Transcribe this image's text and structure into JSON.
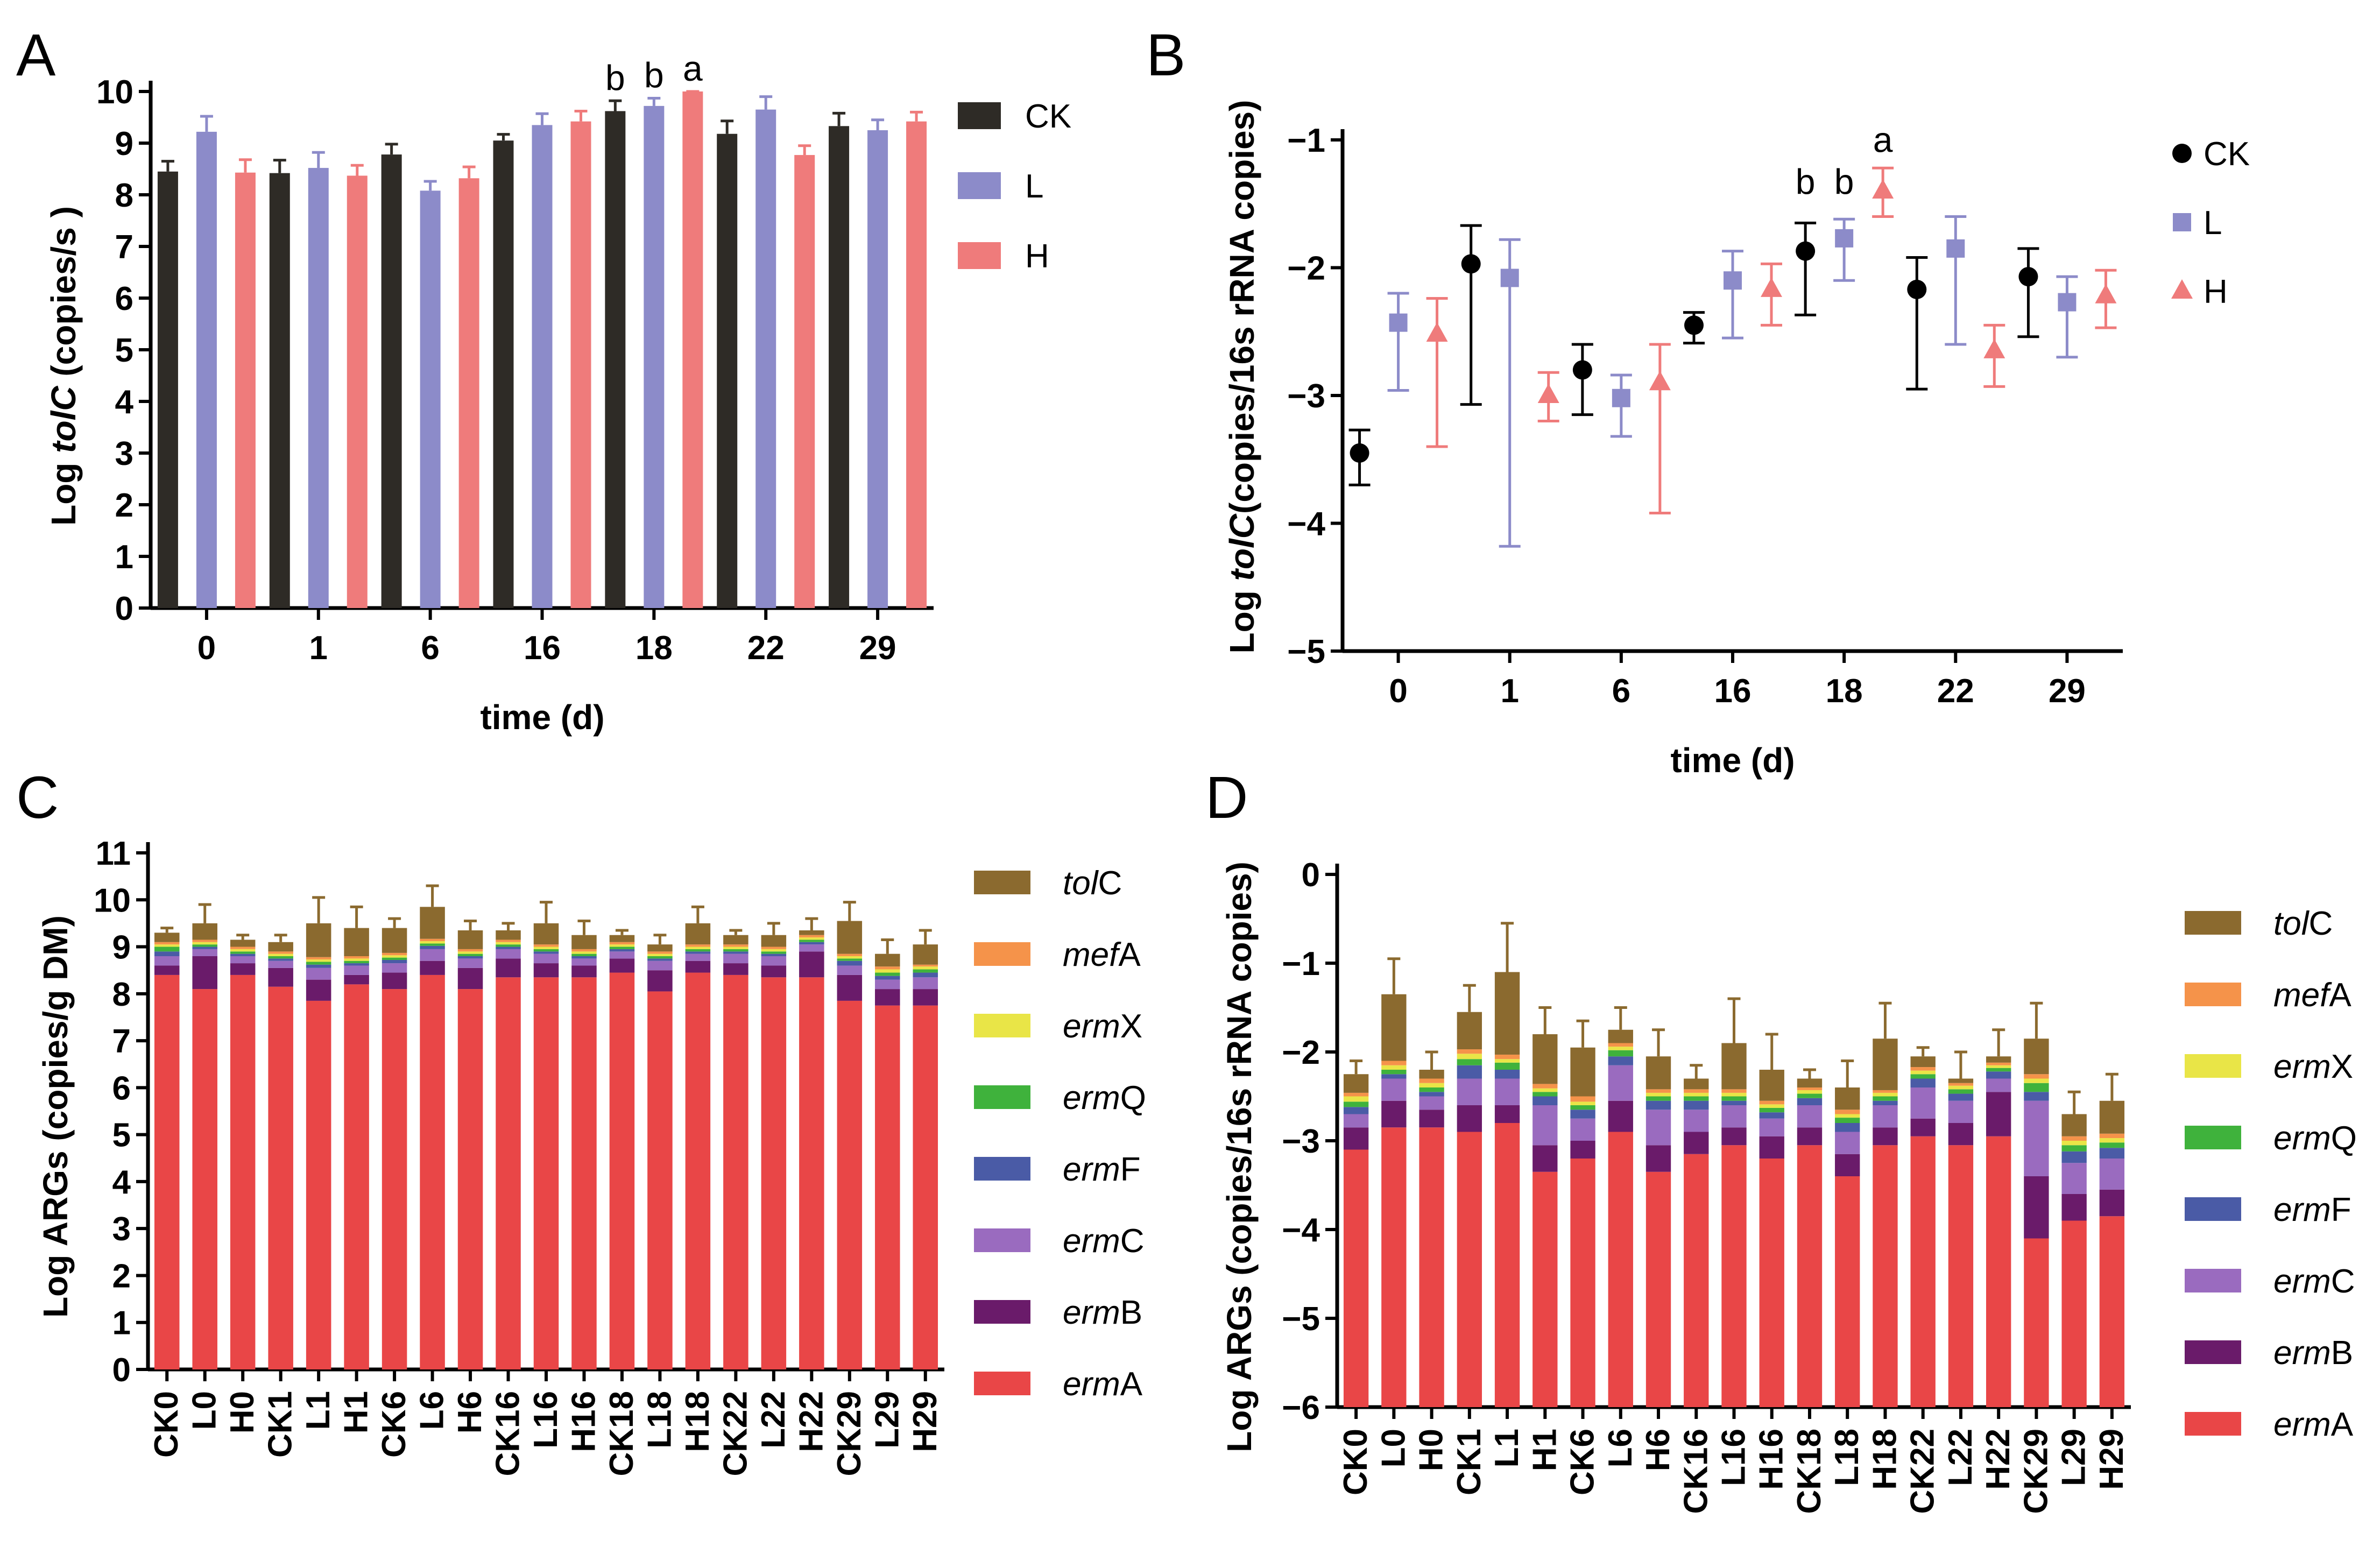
{
  "chart_data": [
    {
      "panel": "A",
      "type": "bar",
      "ylabel": {
        "prefix": "Log ",
        "gene": "tolC",
        "suffix": " (copies/s )"
      },
      "xlabel": "time (d)",
      "categories": [
        "0",
        "1",
        "6",
        "16",
        "18",
        "22",
        "29"
      ],
      "ylim": [
        0,
        10
      ],
      "yticks": [
        0,
        1,
        2,
        3,
        4,
        5,
        6,
        7,
        8,
        9,
        10
      ],
      "series": [
        {
          "name": "CK",
          "color": "#2e2b26",
          "values": [
            8.45,
            8.42,
            8.78,
            9.05,
            9.62,
            9.18,
            9.33
          ],
          "err": [
            0.2,
            0.25,
            0.2,
            0.12,
            0.2,
            0.25,
            0.25
          ]
        },
        {
          "name": "L",
          "color": "#8c8bc9",
          "values": [
            9.22,
            8.52,
            8.08,
            9.35,
            9.72,
            9.65,
            9.25
          ],
          "err": [
            0.3,
            0.3,
            0.18,
            0.22,
            0.15,
            0.25,
            0.2
          ]
        },
        {
          "name": "H",
          "color": "#ef7b7b",
          "values": [
            8.43,
            8.37,
            8.32,
            9.42,
            10.0,
            8.77,
            9.42
          ],
          "err": [
            0.25,
            0.2,
            0.22,
            0.2,
            0.0,
            0.18,
            0.18
          ]
        }
      ],
      "annotations": [
        {
          "category": "18",
          "series": "CK",
          "text": "b"
        },
        {
          "category": "18",
          "series": "L",
          "text": "b"
        },
        {
          "category": "18",
          "series": "H",
          "text": "a"
        }
      ]
    },
    {
      "panel": "B",
      "type": "scatter",
      "ylabel": {
        "prefix": "Log ",
        "gene": "tolC",
        "suffix": "(copies/16s rRNA copies)"
      },
      "xlabel": "time (d)",
      "categories": [
        "0",
        "1",
        "6",
        "16",
        "18",
        "22",
        "29"
      ],
      "ylim": [
        -5,
        -1
      ],
      "yticks": [
        -5,
        -4,
        -3,
        -2,
        -1
      ],
      "series": [
        {
          "name": "CK",
          "marker": "circle",
          "color": "#000000",
          "values": [
            -3.45,
            -1.97,
            -2.8,
            -2.45,
            -1.87,
            -2.17,
            -2.07
          ],
          "err_low": [
            0.25,
            1.1,
            0.35,
            0.14,
            0.5,
            0.78,
            0.47
          ],
          "err_high": [
            0.18,
            0.3,
            0.2,
            0.1,
            0.22,
            0.25,
            0.22
          ]
        },
        {
          "name": "L",
          "marker": "square",
          "color": "#8c8bc9",
          "values": [
            -2.43,
            -2.08,
            -3.02,
            -2.1,
            -1.77,
            -1.85,
            -2.27
          ],
          "err_low": [
            0.53,
            2.1,
            0.3,
            0.45,
            0.33,
            0.75,
            0.43
          ],
          "err_high": [
            0.23,
            0.3,
            0.18,
            0.23,
            0.15,
            0.25,
            0.2
          ]
        },
        {
          "name": "H",
          "marker": "triangle",
          "color": "#ef7b7b",
          "values": [
            -2.52,
            -3.0,
            -2.9,
            -2.17,
            -1.4,
            -2.65,
            -2.22
          ],
          "err_low": [
            0.88,
            0.2,
            1.02,
            0.28,
            0.2,
            0.28,
            0.25
          ],
          "err_high": [
            0.28,
            0.18,
            0.3,
            0.2,
            0.18,
            0.2,
            0.2
          ]
        }
      ],
      "annotations": [
        {
          "category": "18",
          "series": "CK",
          "text": "b"
        },
        {
          "category": "18",
          "series": "L",
          "text": "b"
        },
        {
          "category": "18",
          "series": "H",
          "text": "a"
        }
      ]
    },
    {
      "panel": "C",
      "type": "stacked-bar",
      "ylabel": "Log ARGs (copies/g DM)",
      "categories": [
        "CK0",
        "L0",
        "H0",
        "CK1",
        "L1",
        "H1",
        "CK6",
        "L6",
        "H6",
        "CK16",
        "L16",
        "H16",
        "CK18",
        "L18",
        "H18",
        "CK22",
        "L22",
        "H22",
        "CK29",
        "L29",
        "H29"
      ],
      "ylim": [
        0,
        11
      ],
      "yticks": [
        0,
        1,
        2,
        3,
        4,
        5,
        6,
        7,
        8,
        9,
        10,
        11
      ],
      "stack_boundaries": [
        [
          8.4,
          8.6,
          8.8,
          8.9,
          9.0,
          9.05,
          9.1,
          9.3
        ],
        [
          8.1,
          8.8,
          8.95,
          9.0,
          9.05,
          9.1,
          9.15,
          9.5
        ],
        [
          8.4,
          8.65,
          8.8,
          8.85,
          8.9,
          8.95,
          9.0,
          9.15
        ],
        [
          8.15,
          8.55,
          8.7,
          8.75,
          8.8,
          8.85,
          8.9,
          9.1
        ],
        [
          7.85,
          8.3,
          8.55,
          8.62,
          8.68,
          8.73,
          8.78,
          9.5
        ],
        [
          8.2,
          8.4,
          8.6,
          8.65,
          8.7,
          8.75,
          8.8,
          9.4
        ],
        [
          8.1,
          8.45,
          8.65,
          8.72,
          8.77,
          8.82,
          8.87,
          9.4
        ],
        [
          8.4,
          8.7,
          8.95,
          9.02,
          9.07,
          9.12,
          9.17,
          9.85
        ],
        [
          8.1,
          8.55,
          8.75,
          8.8,
          8.85,
          8.9,
          8.95,
          9.35
        ],
        [
          8.35,
          8.75,
          8.95,
          9.0,
          9.05,
          9.1,
          9.15,
          9.35
        ],
        [
          8.35,
          8.65,
          8.85,
          8.9,
          8.95,
          9.0,
          9.05,
          9.5
        ],
        [
          8.35,
          8.6,
          8.75,
          8.8,
          8.85,
          8.9,
          8.95,
          9.25
        ],
        [
          8.45,
          8.75,
          8.9,
          8.95,
          9.0,
          9.05,
          9.1,
          9.25
        ],
        [
          8.05,
          8.5,
          8.7,
          8.75,
          8.8,
          8.85,
          8.9,
          9.05
        ],
        [
          8.45,
          8.7,
          8.85,
          8.9,
          8.95,
          9.0,
          9.05,
          9.5
        ],
        [
          8.4,
          8.65,
          8.85,
          8.9,
          8.95,
          9.0,
          9.05,
          9.25
        ],
        [
          8.35,
          8.6,
          8.8,
          8.85,
          8.9,
          8.95,
          9.0,
          9.25
        ],
        [
          8.35,
          8.9,
          9.05,
          9.1,
          9.15,
          9.2,
          9.25,
          9.35
        ],
        [
          7.85,
          8.4,
          8.6,
          8.7,
          8.75,
          8.8,
          8.85,
          9.55
        ],
        [
          7.75,
          8.1,
          8.3,
          8.38,
          8.45,
          8.52,
          8.58,
          8.85
        ],
        [
          7.75,
          8.1,
          8.35,
          8.45,
          8.52,
          8.58,
          8.62,
          9.05
        ]
      ],
      "error_top": [
        0.1,
        0.4,
        0.1,
        0.15,
        0.55,
        0.45,
        0.2,
        0.45,
        0.2,
        0.15,
        0.45,
        0.3,
        0.1,
        0.2,
        0.35,
        0.1,
        0.25,
        0.25,
        0.4,
        0.3,
        0.3
      ]
    },
    {
      "panel": "D",
      "type": "stacked-bar",
      "ylabel": "Log ARGs (copies/16s rRNA copies)",
      "categories": [
        "CK0",
        "L0",
        "H0",
        "CK1",
        "L1",
        "H1",
        "CK6",
        "L6",
        "H6",
        "CK16",
        "L16",
        "H16",
        "CK18",
        "L18",
        "H18",
        "CK22",
        "L22",
        "H22",
        "CK29",
        "L29",
        "H29"
      ],
      "ylim": [
        -6,
        0
      ],
      "yticks": [
        -6,
        -5,
        -4,
        -3,
        -2,
        -1,
        0
      ],
      "stack_boundaries": [
        [
          -3.1,
          -2.85,
          -2.7,
          -2.62,
          -2.56,
          -2.5,
          -2.46,
          -2.25
        ],
        [
          -2.85,
          -2.55,
          -2.3,
          -2.25,
          -2.2,
          -2.15,
          -2.1,
          -1.35
        ],
        [
          -2.85,
          -2.65,
          -2.5,
          -2.45,
          -2.4,
          -2.35,
          -2.3,
          -2.2
        ],
        [
          -2.9,
          -2.6,
          -2.3,
          -2.15,
          -2.08,
          -2.02,
          -1.97,
          -1.55
        ],
        [
          -2.8,
          -2.6,
          -2.3,
          -2.2,
          -2.12,
          -2.08,
          -2.03,
          -1.1
        ],
        [
          -3.35,
          -3.05,
          -2.6,
          -2.5,
          -2.45,
          -2.41,
          -2.36,
          -1.8
        ],
        [
          -3.2,
          -3.0,
          -2.75,
          -2.65,
          -2.6,
          -2.56,
          -2.5,
          -1.95
        ],
        [
          -2.9,
          -2.55,
          -2.15,
          -2.05,
          -1.98,
          -1.94,
          -1.9,
          -1.75
        ],
        [
          -3.35,
          -3.05,
          -2.65,
          -2.55,
          -2.5,
          -2.46,
          -2.42,
          -2.05
        ],
        [
          -3.15,
          -2.9,
          -2.65,
          -2.55,
          -2.5,
          -2.46,
          -2.42,
          -2.3
        ],
        [
          -3.05,
          -2.85,
          -2.6,
          -2.55,
          -2.5,
          -2.46,
          -2.42,
          -1.9
        ],
        [
          -3.2,
          -2.95,
          -2.75,
          -2.68,
          -2.63,
          -2.59,
          -2.55,
          -2.2
        ],
        [
          -3.05,
          -2.85,
          -2.6,
          -2.52,
          -2.47,
          -2.43,
          -2.4,
          -2.3
        ],
        [
          -3.4,
          -3.15,
          -2.9,
          -2.8,
          -2.74,
          -2.7,
          -2.65,
          -2.4
        ],
        [
          -3.05,
          -2.85,
          -2.6,
          -2.55,
          -2.5,
          -2.46,
          -2.43,
          -1.85
        ],
        [
          -2.95,
          -2.75,
          -2.4,
          -2.3,
          -2.25,
          -2.21,
          -2.17,
          -2.05
        ],
        [
          -3.05,
          -2.8,
          -2.55,
          -2.47,
          -2.42,
          -2.38,
          -2.35,
          -2.3
        ],
        [
          -2.95,
          -2.45,
          -2.3,
          -2.22,
          -2.18,
          -2.15,
          -2.12,
          -2.05
        ],
        [
          -4.1,
          -3.4,
          -2.55,
          -2.45,
          -2.35,
          -2.3,
          -2.25,
          -1.85
        ],
        [
          -3.9,
          -3.6,
          -3.25,
          -3.12,
          -3.05,
          -3.0,
          -2.95,
          -2.7
        ],
        [
          -3.85,
          -3.55,
          -3.2,
          -3.08,
          -3.02,
          -2.97,
          -2.92,
          -2.55
        ]
      ],
      "error_top": [
        0.15,
        0.4,
        0.2,
        0.3,
        0.55,
        0.3,
        0.3,
        0.25,
        0.3,
        0.15,
        0.5,
        0.4,
        0.1,
        0.3,
        0.4,
        0.1,
        0.3,
        0.3,
        0.4,
        0.25,
        0.3
      ]
    }
  ],
  "panels": {
    "A": "A",
    "B": "B",
    "C": "C",
    "D": "D"
  },
  "stack_legend": [
    {
      "gene": "tol",
      "suffix": "C",
      "color": "#8b6a2f"
    },
    {
      "gene": "mef",
      "suffix": "A",
      "color": "#f5934a"
    },
    {
      "gene": "erm",
      "suffix": "X",
      "color": "#e9e547"
    },
    {
      "gene": "erm",
      "suffix": "Q",
      "color": "#3fb23c"
    },
    {
      "gene": "erm",
      "suffix": "F",
      "color": "#4a5ba6"
    },
    {
      "gene": "erm",
      "suffix": "C",
      "color": "#9a6bbf"
    },
    {
      "gene": "erm",
      "suffix": "B",
      "color": "#6a1b6a"
    },
    {
      "gene": "erm",
      "suffix": "A",
      "color": "#e94647"
    }
  ]
}
